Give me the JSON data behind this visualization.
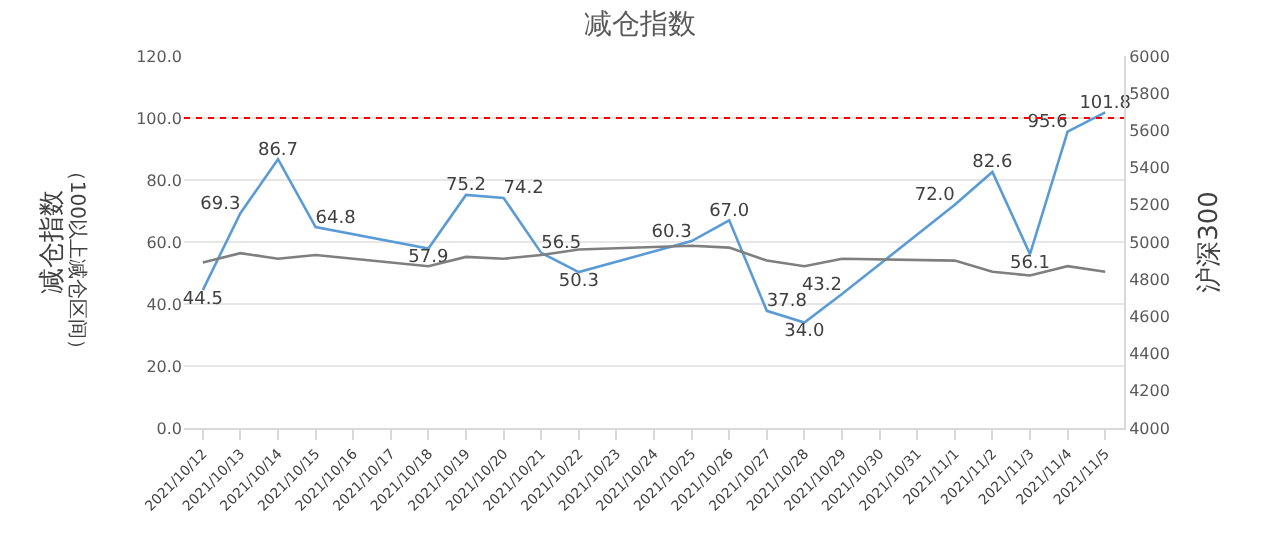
{
  "chart_data": {
    "type": "line",
    "title": "减仓指数",
    "ylabel": "减仓指数",
    "y2label": "沪深300",
    "annotations": [
      "（100以上减仓区间）"
    ],
    "categories": [
      "2021/10/12",
      "2021/10/13",
      "2021/10/14",
      "2021/10/15",
      "2021/10/16",
      "2021/10/17",
      "2021/10/18",
      "2021/10/19",
      "2021/10/20",
      "2021/10/21",
      "2021/10/22",
      "2021/10/23",
      "2021/10/24",
      "2021/10/25",
      "2021/10/26",
      "2021/10/27",
      "2021/10/28",
      "2021/10/29",
      "2021/10/30",
      "2021/10/31",
      "2021/11/1",
      "2021/11/2",
      "2021/11/3",
      "2021/11/4",
      "2021/11/5"
    ],
    "series": [
      {
        "color": "#5b9bd5",
        "values": [
          44.5,
          69.3,
          86.7,
          64.8,
          null,
          null,
          57.9,
          75.2,
          74.2,
          56.5,
          50.3,
          null,
          null,
          60.3,
          67.0,
          37.8,
          34.0,
          43.2,
          null,
          null,
          72.0,
          82.6,
          56.1,
          95.6,
          101.8
        ],
        "value_labels": [
          "44.5",
          "69.3",
          "86.7",
          "64.8",
          null,
          null,
          "57.9",
          "75.2",
          "74.2",
          "56.5",
          "50.3",
          null,
          null,
          "60.3",
          "67.0",
          "37.8",
          "34.0",
          "43.2",
          null,
          null,
          "72.0",
          "82.6",
          "56.1",
          "95.6",
          "101.8"
        ]
      },
      {
        "color": "#7f7f7f",
        "axis": "y2",
        "data_labels": false,
        "values": [
          4890,
          4940,
          4910,
          4930,
          null,
          null,
          4870,
          4920,
          4910,
          4930,
          4960,
          null,
          null,
          4980,
          4970,
          4900,
          4870,
          4910,
          null,
          null,
          4900,
          4840,
          4820,
          4870,
          4840
        ]
      }
    ],
    "data_labels": true,
    "ylim": [
      0,
      120
    ],
    "yticks": [
      {
        "value": 0,
        "label": "0.0"
      },
      {
        "value": 20,
        "label": "20.0"
      },
      {
        "value": 40,
        "label": "40.0"
      },
      {
        "value": 60,
        "label": "60.0"
      },
      {
        "value": 80,
        "label": "80.0"
      },
      {
        "value": 100,
        "label": "100.0"
      },
      {
        "value": 120,
        "label": "120.0"
      }
    ],
    "y2lim": [
      4000,
      6000
    ],
    "y2ticks": [
      4000,
      4200,
      4400,
      4600,
      4800,
      5000,
      5200,
      5400,
      5600,
      5800,
      6000
    ],
    "ref_lines": [
      {
        "axis": "y",
        "value": 100,
        "color": "#ff0000",
        "line_style": "dotted"
      }
    ],
    "grid": "y"
  }
}
